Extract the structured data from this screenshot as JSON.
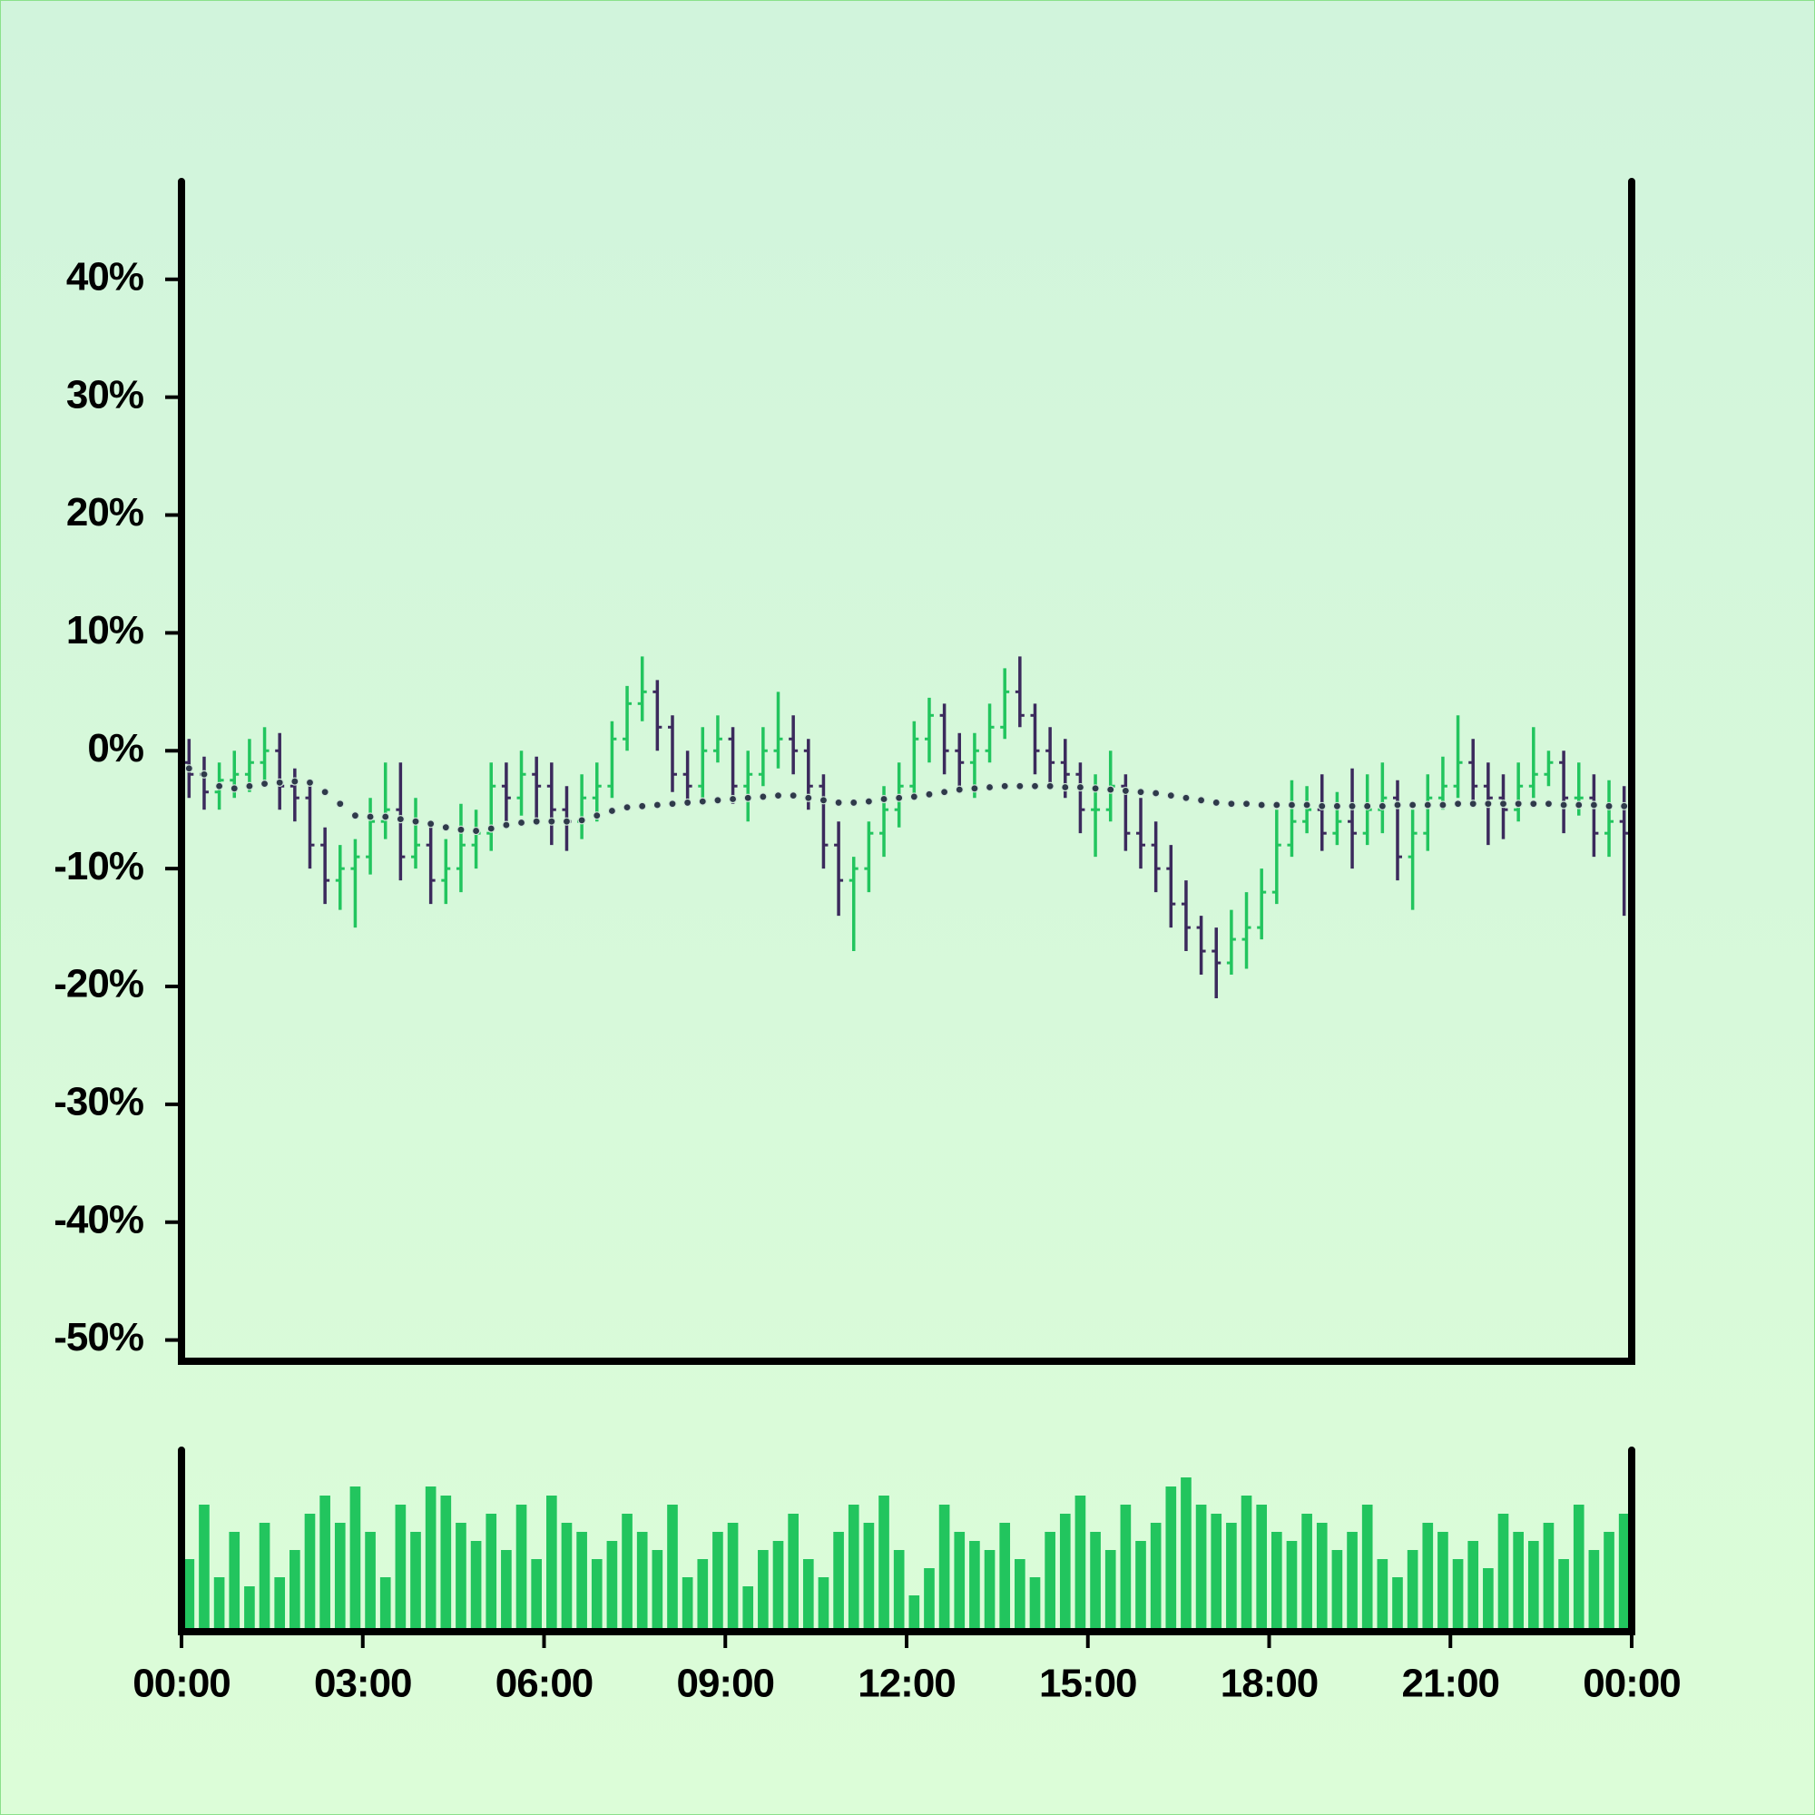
{
  "chart_data": {
    "type": "ohlc",
    "xlim": [
      0,
      24
    ],
    "xticks": [
      {
        "value": 0,
        "label": "00:00"
      },
      {
        "value": 3,
        "label": "03:00"
      },
      {
        "value": 6,
        "label": "06:00"
      },
      {
        "value": 9,
        "label": "09:00"
      },
      {
        "value": 12,
        "label": "12:00"
      },
      {
        "value": 15,
        "label": "15:00"
      },
      {
        "value": 18,
        "label": "18:00"
      },
      {
        "value": 21,
        "label": "21:00"
      },
      {
        "value": 24,
        "label": "00:00"
      }
    ],
    "ylim": [
      -51.8,
      48.3
    ],
    "yticks": [
      {
        "value": 40,
        "label": "40%"
      },
      {
        "value": 30,
        "label": "30%"
      },
      {
        "value": 20,
        "label": "20%"
      },
      {
        "value": 10,
        "label": "10%"
      },
      {
        "value": 0,
        "label": "0%"
      },
      {
        "value": -10,
        "label": "-10%"
      },
      {
        "value": -20,
        "label": "-20%"
      },
      {
        "value": -30,
        "label": "-30%"
      },
      {
        "value": -40,
        "label": "-40%"
      },
      {
        "value": -50,
        "label": "-50%"
      }
    ],
    "volume_ylim": [
      0,
      100
    ],
    "up_color": "#22c55e",
    "down_color": "#3b2a5c",
    "ma_color": "#2f3a4a",
    "volume_color": "#22c55e",
    "x": [
      0.125,
      0.375,
      0.625,
      0.875,
      1.125,
      1.375,
      1.625,
      1.875,
      2.125,
      2.375,
      2.625,
      2.875,
      3.125,
      3.375,
      3.625,
      3.875,
      4.125,
      4.375,
      4.625,
      4.875,
      5.125,
      5.375,
      5.625,
      5.875,
      6.125,
      6.375,
      6.625,
      6.875,
      7.125,
      7.375,
      7.625,
      7.875,
      8.125,
      8.375,
      8.625,
      8.875,
      9.125,
      9.375,
      9.625,
      9.875,
      10.125,
      10.375,
      10.625,
      10.875,
      11.125,
      11.375,
      11.625,
      11.875,
      12.125,
      12.375,
      12.625,
      12.875,
      13.125,
      13.375,
      13.625,
      13.875,
      14.125,
      14.375,
      14.625,
      14.875,
      15.125,
      15.375,
      15.625,
      15.875,
      16.125,
      16.375,
      16.625,
      16.875,
      17.125,
      17.375,
      17.625,
      17.875,
      18.125,
      18.375,
      18.625,
      18.875,
      19.125,
      19.375,
      19.625,
      19.875,
      20.125,
      20.375,
      20.625,
      20.875,
      21.125,
      21.375,
      21.625,
      21.875,
      22.125,
      22.375,
      22.625,
      22.875,
      23.125,
      23.375,
      23.625,
      23.875
    ],
    "ohlc": [
      [
        -1,
        1,
        -4,
        -2
      ],
      [
        -2,
        -0.5,
        -5,
        -3.5
      ],
      [
        -3.5,
        -1,
        -5,
        -2.5
      ],
      [
        -2.5,
        0,
        -4,
        -2
      ],
      [
        -2,
        1,
        -3.5,
        -1
      ],
      [
        -1,
        2,
        -2.5,
        0
      ],
      [
        0,
        1.5,
        -5,
        -3
      ],
      [
        -3,
        -1.5,
        -6,
        -4
      ],
      [
        -4,
        -3,
        -10,
        -8
      ],
      [
        -8,
        -6.5,
        -13,
        -11
      ],
      [
        -11,
        -8,
        -13.5,
        -10
      ],
      [
        -10,
        -7.5,
        -15,
        -9
      ],
      [
        -9,
        -4,
        -10.5,
        -6
      ],
      [
        -6,
        -1,
        -7.5,
        -5
      ],
      [
        -5,
        -1,
        -11,
        -9
      ],
      [
        -9,
        -4,
        -10,
        -8
      ],
      [
        -8,
        -6,
        -13,
        -11
      ],
      [
        -11,
        -7.5,
        -13,
        -10
      ],
      [
        -10,
        -4.5,
        -12,
        -8
      ],
      [
        -8,
        -5,
        -10,
        -7
      ],
      [
        -7,
        -1,
        -8.5,
        -3
      ],
      [
        -3,
        -1,
        -6,
        -4
      ],
      [
        -4,
        0,
        -5.5,
        -2
      ],
      [
        -2,
        -0.5,
        -6,
        -3
      ],
      [
        -3,
        -1,
        -8,
        -5
      ],
      [
        -5,
        -3,
        -8.5,
        -6
      ],
      [
        -6,
        -2,
        -7.5,
        -4
      ],
      [
        -4,
        -1,
        -6,
        -3
      ],
      [
        -3,
        2.5,
        -4,
        1
      ],
      [
        1,
        5.5,
        0,
        4
      ],
      [
        4,
        8,
        2.5,
        5
      ],
      [
        5,
        6,
        0,
        2
      ],
      [
        2,
        3,
        -3.5,
        -2
      ],
      [
        -2,
        0,
        -4.5,
        -3
      ],
      [
        -3,
        2,
        -4,
        0
      ],
      [
        0,
        3,
        -1,
        1
      ],
      [
        1,
        2,
        -4.5,
        -3
      ],
      [
        -3,
        0,
        -6,
        -2
      ],
      [
        -2,
        2,
        -3,
        0
      ],
      [
        0,
        5,
        -1.5,
        1
      ],
      [
        1,
        3,
        -2,
        0
      ],
      [
        0,
        1,
        -5,
        -3
      ],
      [
        -3,
        -2,
        -10,
        -8
      ],
      [
        -8,
        -6,
        -14,
        -11
      ],
      [
        -11,
        -9,
        -17,
        -10
      ],
      [
        -10,
        -6,
        -12,
        -7
      ],
      [
        -7,
        -3,
        -9,
        -5
      ],
      [
        -5,
        -1,
        -6.5,
        -3
      ],
      [
        -3,
        2.5,
        -4,
        1
      ],
      [
        1,
        4.5,
        -1,
        3
      ],
      [
        3,
        4,
        -2,
        0
      ],
      [
        0,
        1.5,
        -3,
        -1
      ],
      [
        -1,
        1.5,
        -4,
        0
      ],
      [
        0,
        4,
        -1,
        2
      ],
      [
        2,
        7,
        1,
        5
      ],
      [
        5,
        8,
        2,
        3
      ],
      [
        3,
        4,
        -2,
        0
      ],
      [
        0,
        2,
        -3,
        -1
      ],
      [
        -1,
        1,
        -4,
        -2
      ],
      [
        -2,
        -1,
        -7,
        -5
      ],
      [
        -5,
        -2,
        -9,
        -5
      ],
      [
        -5,
        0,
        -6,
        -3
      ],
      [
        -3,
        -2,
        -8.5,
        -7
      ],
      [
        -7,
        -4,
        -10,
        -8
      ],
      [
        -8,
        -6,
        -12,
        -10
      ],
      [
        -10,
        -8,
        -15,
        -13
      ],
      [
        -13,
        -11,
        -17,
        -15
      ],
      [
        -15,
        -14,
        -19,
        -17
      ],
      [
        -17,
        -15,
        -21,
        -18
      ],
      [
        -18,
        -13.5,
        -19,
        -16
      ],
      [
        -16,
        -12,
        -18.5,
        -15
      ],
      [
        -15,
        -10,
        -16,
        -12
      ],
      [
        -12,
        -5,
        -13,
        -8
      ],
      [
        -8,
        -2.5,
        -9,
        -6
      ],
      [
        -6,
        -3,
        -7,
        -5
      ],
      [
        -5,
        -2,
        -8.5,
        -7
      ],
      [
        -7,
        -3.5,
        -8,
        -6
      ],
      [
        -6,
        -1.5,
        -10,
        -7
      ],
      [
        -7,
        -2,
        -8,
        -5
      ],
      [
        -5,
        -1,
        -7,
        -4
      ],
      [
        -4,
        -2.5,
        -11,
        -9
      ],
      [
        -9,
        -5,
        -13.5,
        -7
      ],
      [
        -7,
        -2,
        -8.5,
        -4
      ],
      [
        -4,
        -0.5,
        -5,
        -3
      ],
      [
        -3,
        3,
        -4,
        -1
      ],
      [
        -1,
        1,
        -4.5,
        -3
      ],
      [
        -3,
        -1,
        -8,
        -4
      ],
      [
        -4,
        -2,
        -7.5,
        -5
      ],
      [
        -5,
        -1,
        -6,
        -3
      ],
      [
        -3,
        2,
        -4,
        -2
      ],
      [
        -2,
        0,
        -3,
        -1
      ],
      [
        -1,
        0,
        -7,
        -4
      ],
      [
        -4,
        -1,
        -5.5,
        -4
      ],
      [
        -4,
        -2,
        -9,
        -7
      ],
      [
        -7,
        -2.5,
        -9,
        -6
      ],
      [
        -6,
        -3,
        -14,
        -7
      ]
    ],
    "ma": [
      -1.5,
      -2,
      -3,
      -3.2,
      -3,
      -2.8,
      -2.7,
      -2.6,
      -2.7,
      -3.5,
      -4.5,
      -5.5,
      -5.6,
      -5.6,
      -5.8,
      -6,
      -6.2,
      -6.5,
      -6.7,
      -6.8,
      -6.6,
      -6.3,
      -6.1,
      -6,
      -6,
      -6,
      -5.9,
      -5.5,
      -5.1,
      -4.8,
      -4.7,
      -4.6,
      -4.5,
      -4.4,
      -4.3,
      -4.2,
      -4.1,
      -4,
      -3.9,
      -3.8,
      -3.8,
      -4,
      -4.2,
      -4.4,
      -4.4,
      -4.3,
      -4.1,
      -4,
      -3.9,
      -3.7,
      -3.5,
      -3.3,
      -3.2,
      -3.1,
      -3,
      -3,
      -3,
      -3,
      -3.1,
      -3.1,
      -3.2,
      -3.3,
      -3.4,
      -3.5,
      -3.6,
      -3.8,
      -4,
      -4.2,
      -4.4,
      -4.5,
      -4.5,
      -4.6,
      -4.6,
      -4.6,
      -4.6,
      -4.7,
      -4.7,
      -4.7,
      -4.7,
      -4.7,
      -4.6,
      -4.6,
      -4.6,
      -4.6,
      -4.5,
      -4.5,
      -4.5,
      -4.5,
      -4.5,
      -4.5,
      -4.5,
      -4.6,
      -4.6,
      -4.6,
      -4.7,
      -4.7
    ],
    "volume": [
      40,
      70,
      30,
      55,
      25,
      60,
      30,
      45,
      65,
      75,
      60,
      80,
      55,
      30,
      70,
      55,
      80,
      75,
      60,
      50,
      65,
      45,
      70,
      40,
      75,
      60,
      55,
      40,
      50,
      65,
      55,
      45,
      70,
      30,
      40,
      55,
      60,
      25,
      45,
      50,
      65,
      40,
      30,
      55,
      70,
      60,
      75,
      45,
      20,
      35,
      70,
      55,
      50,
      45,
      60,
      40,
      30,
      55,
      65,
      75,
      55,
      45,
      70,
      50,
      60,
      80,
      85,
      70,
      65,
      60,
      75,
      70,
      55,
      50,
      65,
      60,
      45,
      55,
      70,
      40,
      30,
      45,
      60,
      55,
      40,
      50,
      35,
      65,
      55,
      50,
      60,
      40,
      70,
      45,
      55,
      65
    ]
  }
}
